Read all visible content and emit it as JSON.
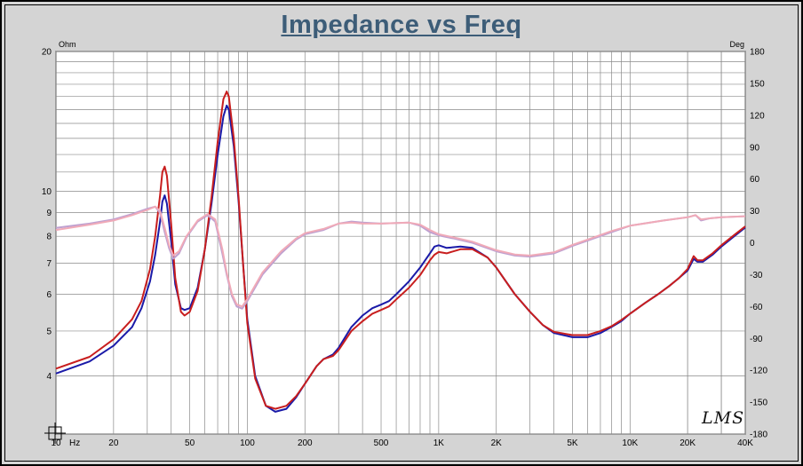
{
  "title": "Impedance vs Freq",
  "logo": "LMS",
  "chart_data": {
    "type": "line",
    "title": "Impedance vs Freq",
    "x_scale": "log",
    "xlim": [
      10,
      40000
    ],
    "x_unit": "Hz",
    "x_ticks": [
      {
        "value": 10,
        "label": "10"
      },
      {
        "value": 20,
        "label": "20"
      },
      {
        "value": 50,
        "label": "50"
      },
      {
        "value": 100,
        "label": "100"
      },
      {
        "value": 200,
        "label": "200"
      },
      {
        "value": 500,
        "label": "500"
      },
      {
        "value": 1000,
        "label": "1K"
      },
      {
        "value": 2000,
        "label": "2K"
      },
      {
        "value": 5000,
        "label": "5K"
      },
      {
        "value": 10000,
        "label": "10K"
      },
      {
        "value": 20000,
        "label": "20K"
      },
      {
        "value": 40000,
        "label": "40K"
      }
    ],
    "y_left": {
      "unit": "Ohm",
      "scale": "log",
      "lim": [
        3,
        20
      ],
      "ticks": [
        {
          "value": 4,
          "label": "4"
        },
        {
          "value": 5,
          "label": "5"
        },
        {
          "value": 6,
          "label": "6"
        },
        {
          "value": 7,
          "label": "7"
        },
        {
          "value": 8,
          "label": "8"
        },
        {
          "value": 9,
          "label": "9"
        },
        {
          "value": 10,
          "label": "10"
        },
        {
          "value": 20,
          "label": "20"
        }
      ]
    },
    "y_right": {
      "unit": "Deg",
      "scale": "linear",
      "lim": [
        -180,
        180
      ],
      "ticks": [
        180,
        150,
        120,
        90,
        60,
        30,
        0,
        -30,
        -60,
        -90,
        -120,
        -150,
        -180
      ]
    },
    "grid": true,
    "series": [
      {
        "axis": "left",
        "color": "#1a1aa8",
        "points": [
          [
            10,
            4.05
          ],
          [
            15,
            4.3
          ],
          [
            20,
            4.65
          ],
          [
            25,
            5.1
          ],
          [
            28,
            5.6
          ],
          [
            31,
            6.4
          ],
          [
            33,
            7.3
          ],
          [
            35,
            8.6
          ],
          [
            36,
            9.5
          ],
          [
            37,
            9.8
          ],
          [
            38,
            9.4
          ],
          [
            40,
            7.8
          ],
          [
            42,
            6.3
          ],
          [
            45,
            5.6
          ],
          [
            47,
            5.55
          ],
          [
            50,
            5.6
          ],
          [
            55,
            6.2
          ],
          [
            60,
            7.5
          ],
          [
            65,
            9.4
          ],
          [
            70,
            12
          ],
          [
            75,
            14.5
          ],
          [
            78,
            15.3
          ],
          [
            80,
            15
          ],
          [
            85,
            12.5
          ],
          [
            90,
            9.5
          ],
          [
            95,
            7
          ],
          [
            100,
            5.3
          ],
          [
            110,
            4.0
          ],
          [
            125,
            3.45
          ],
          [
            140,
            3.35
          ],
          [
            160,
            3.4
          ],
          [
            180,
            3.6
          ],
          [
            200,
            3.85
          ],
          [
            230,
            4.2
          ],
          [
            250,
            4.35
          ],
          [
            280,
            4.45
          ],
          [
            300,
            4.6
          ],
          [
            350,
            5.1
          ],
          [
            400,
            5.4
          ],
          [
            450,
            5.6
          ],
          [
            500,
            5.7
          ],
          [
            550,
            5.8
          ],
          [
            600,
            6.0
          ],
          [
            700,
            6.4
          ],
          [
            800,
            6.85
          ],
          [
            900,
            7.35
          ],
          [
            950,
            7.6
          ],
          [
            1000,
            7.65
          ],
          [
            1100,
            7.55
          ],
          [
            1300,
            7.6
          ],
          [
            1500,
            7.55
          ],
          [
            1800,
            7.2
          ],
          [
            2000,
            6.85
          ],
          [
            2500,
            6.0
          ],
          [
            3000,
            5.5
          ],
          [
            3500,
            5.15
          ],
          [
            4000,
            4.95
          ],
          [
            5000,
            4.85
          ],
          [
            6000,
            4.85
          ],
          [
            7000,
            4.95
          ],
          [
            8000,
            5.1
          ],
          [
            9000,
            5.25
          ],
          [
            10000,
            5.45
          ],
          [
            12000,
            5.75
          ],
          [
            14000,
            6.0
          ],
          [
            16000,
            6.25
          ],
          [
            18000,
            6.5
          ],
          [
            20000,
            6.75
          ],
          [
            21500,
            7.15
          ],
          [
            22500,
            7.05
          ],
          [
            24000,
            7.05
          ],
          [
            27000,
            7.3
          ],
          [
            30000,
            7.6
          ],
          [
            35000,
            8.0
          ],
          [
            40000,
            8.35
          ]
        ]
      },
      {
        "axis": "left",
        "color": "#c81e1e",
        "points": [
          [
            10,
            4.15
          ],
          [
            15,
            4.4
          ],
          [
            20,
            4.8
          ],
          [
            25,
            5.3
          ],
          [
            28,
            5.8
          ],
          [
            31,
            6.8
          ],
          [
            33,
            8.0
          ],
          [
            35,
            9.8
          ],
          [
            36,
            11.0
          ],
          [
            37,
            11.3
          ],
          [
            38,
            10.8
          ],
          [
            40,
            8.5
          ],
          [
            42,
            6.5
          ],
          [
            45,
            5.5
          ],
          [
            47,
            5.4
          ],
          [
            50,
            5.5
          ],
          [
            55,
            6.1
          ],
          [
            60,
            7.5
          ],
          [
            65,
            9.7
          ],
          [
            70,
            12.8
          ],
          [
            75,
            15.8
          ],
          [
            78,
            16.4
          ],
          [
            80,
            16.0
          ],
          [
            85,
            13.0
          ],
          [
            90,
            9.7
          ],
          [
            95,
            7.0
          ],
          [
            100,
            5.2
          ],
          [
            110,
            3.95
          ],
          [
            125,
            3.45
          ],
          [
            140,
            3.4
          ],
          [
            160,
            3.45
          ],
          [
            180,
            3.62
          ],
          [
            200,
            3.85
          ],
          [
            230,
            4.2
          ],
          [
            250,
            4.35
          ],
          [
            280,
            4.42
          ],
          [
            300,
            4.55
          ],
          [
            350,
            5.0
          ],
          [
            400,
            5.25
          ],
          [
            450,
            5.45
          ],
          [
            500,
            5.55
          ],
          [
            550,
            5.65
          ],
          [
            600,
            5.85
          ],
          [
            700,
            6.2
          ],
          [
            800,
            6.6
          ],
          [
            900,
            7.1
          ],
          [
            950,
            7.3
          ],
          [
            1000,
            7.4
          ],
          [
            1100,
            7.35
          ],
          [
            1300,
            7.5
          ],
          [
            1500,
            7.5
          ],
          [
            1800,
            7.2
          ],
          [
            2000,
            6.85
          ],
          [
            2500,
            6.0
          ],
          [
            3000,
            5.5
          ],
          [
            3500,
            5.15
          ],
          [
            4000,
            4.98
          ],
          [
            5000,
            4.9
          ],
          [
            6000,
            4.9
          ],
          [
            7000,
            5.0
          ],
          [
            8000,
            5.12
          ],
          [
            9000,
            5.28
          ],
          [
            10000,
            5.45
          ],
          [
            12000,
            5.75
          ],
          [
            14000,
            6.0
          ],
          [
            16000,
            6.25
          ],
          [
            18000,
            6.5
          ],
          [
            20000,
            6.8
          ],
          [
            21500,
            7.25
          ],
          [
            22500,
            7.1
          ],
          [
            24000,
            7.1
          ],
          [
            27000,
            7.35
          ],
          [
            30000,
            7.65
          ],
          [
            35000,
            8.05
          ],
          [
            40000,
            8.4
          ]
        ]
      },
      {
        "axis": "right",
        "color": "#bea0d0",
        "points": [
          [
            10,
            14
          ],
          [
            15,
            18
          ],
          [
            20,
            22
          ],
          [
            25,
            27
          ],
          [
            30,
            32
          ],
          [
            33,
            34
          ],
          [
            35,
            28
          ],
          [
            37,
            10
          ],
          [
            39,
            -5
          ],
          [
            41,
            -15
          ],
          [
            44,
            -10
          ],
          [
            48,
            5
          ],
          [
            55,
            20
          ],
          [
            62,
            26
          ],
          [
            68,
            20
          ],
          [
            74,
            -10
          ],
          [
            78,
            -30
          ],
          [
            83,
            -50
          ],
          [
            88,
            -60
          ],
          [
            94,
            -62
          ],
          [
            100,
            -55
          ],
          [
            120,
            -30
          ],
          [
            150,
            -10
          ],
          [
            180,
            3
          ],
          [
            200,
            8
          ],
          [
            250,
            12
          ],
          [
            300,
            18
          ],
          [
            350,
            20
          ],
          [
            400,
            19
          ],
          [
            500,
            18
          ],
          [
            700,
            19
          ],
          [
            800,
            16
          ],
          [
            900,
            10
          ],
          [
            1000,
            7
          ],
          [
            1200,
            4
          ],
          [
            1500,
            0
          ],
          [
            2000,
            -8
          ],
          [
            2500,
            -12
          ],
          [
            3000,
            -13
          ],
          [
            4000,
            -10
          ],
          [
            5000,
            -3
          ],
          [
            6000,
            2
          ],
          [
            8000,
            10
          ],
          [
            10000,
            16
          ],
          [
            15000,
            21
          ],
          [
            20000,
            24
          ],
          [
            22000,
            26
          ],
          [
            23500,
            21
          ],
          [
            26000,
            23
          ],
          [
            30000,
            24
          ],
          [
            40000,
            25
          ]
        ]
      },
      {
        "axis": "right",
        "color": "#f0aab8",
        "points": [
          [
            10,
            12
          ],
          [
            15,
            17
          ],
          [
            20,
            21
          ],
          [
            25,
            26
          ],
          [
            30,
            31
          ],
          [
            33,
            34
          ],
          [
            35,
            30
          ],
          [
            37,
            14
          ],
          [
            39,
            -2
          ],
          [
            41,
            -12
          ],
          [
            44,
            -8
          ],
          [
            48,
            6
          ],
          [
            55,
            21
          ],
          [
            62,
            27
          ],
          [
            68,
            22
          ],
          [
            74,
            -6
          ],
          [
            78,
            -28
          ],
          [
            83,
            -48
          ],
          [
            88,
            -58
          ],
          [
            94,
            -60
          ],
          [
            100,
            -53
          ],
          [
            120,
            -28
          ],
          [
            150,
            -8
          ],
          [
            180,
            4
          ],
          [
            200,
            9
          ],
          [
            250,
            13
          ],
          [
            300,
            18
          ],
          [
            350,
            19
          ],
          [
            400,
            18
          ],
          [
            500,
            18
          ],
          [
            700,
            19
          ],
          [
            800,
            17
          ],
          [
            900,
            12
          ],
          [
            1000,
            8
          ],
          [
            1200,
            5
          ],
          [
            1500,
            1
          ],
          [
            2000,
            -7
          ],
          [
            2500,
            -11
          ],
          [
            3000,
            -12
          ],
          [
            4000,
            -9
          ],
          [
            5000,
            -2
          ],
          [
            6000,
            3
          ],
          [
            8000,
            11
          ],
          [
            10000,
            16
          ],
          [
            15000,
            21
          ],
          [
            20000,
            24
          ],
          [
            22000,
            26
          ],
          [
            23500,
            22
          ],
          [
            26000,
            23
          ],
          [
            30000,
            24
          ],
          [
            40000,
            25
          ]
        ]
      }
    ]
  }
}
